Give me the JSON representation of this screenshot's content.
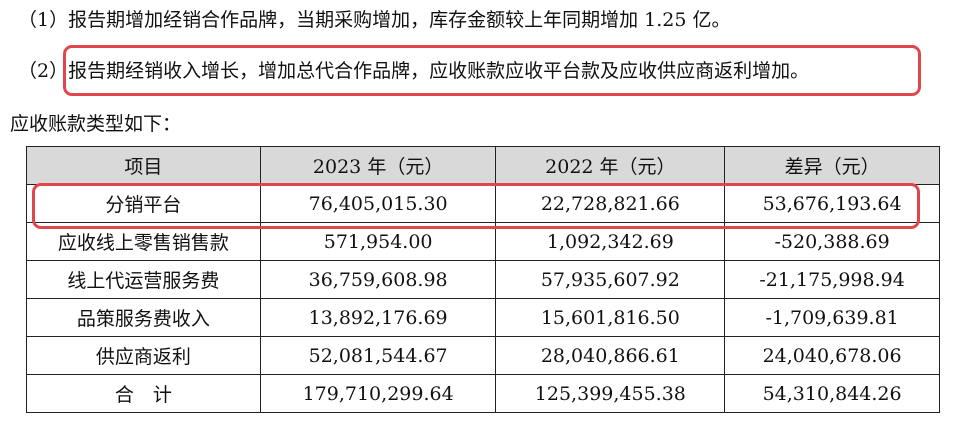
{
  "paragraphs": {
    "p1": "（1）报告期增加经销合作品牌，当期采购增加，库存金额较上年同期增加 1.25 亿。",
    "p2": "（2）报告期经销收入增长，增加总代合作品牌，应收账款应收平台款及应收供应商返利增加。"
  },
  "intro": "应收账款类型如下：",
  "table": {
    "headers": [
      "项目",
      "2023 年（元）",
      "2022 年（元）",
      "差异（元）"
    ],
    "rows": [
      [
        "分销平台",
        "76,405,015.30",
        "22,728,821.66",
        "53,676,193.64"
      ],
      [
        "应收线上零售销售款",
        "571,954.00",
        "1,092,342.69",
        "-520,388.69"
      ],
      [
        "线上代运营服务费",
        "36,759,608.98",
        "57,935,607.92",
        "-21,175,998.94"
      ],
      [
        "品策服务费收入",
        "13,892,176.69",
        "15,601,816.50",
        "-1,709,639.81"
      ],
      [
        "供应商返利",
        "52,081,544.67",
        "28,040,866.61",
        "24,040,678.06"
      ],
      [
        "合　计",
        "179,710,299.64",
        "125,399,455.38",
        "54,310,844.26"
      ]
    ]
  },
  "highlight_color": "#e0474c"
}
